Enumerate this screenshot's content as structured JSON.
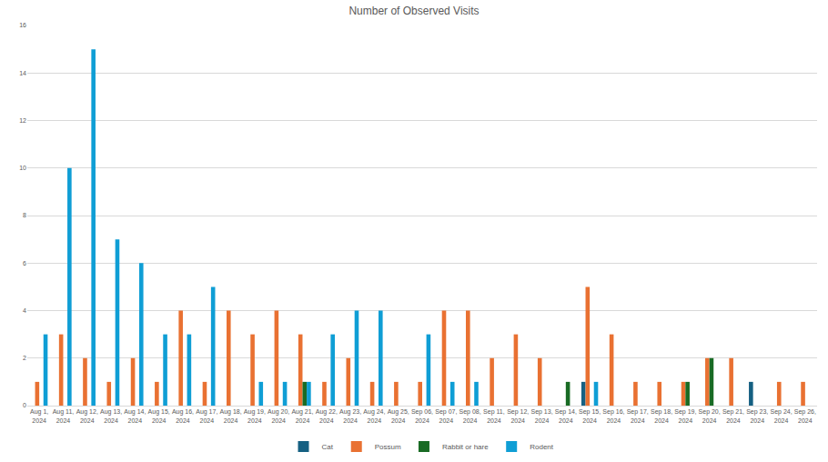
{
  "chart_data": {
    "type": "bar",
    "title": "Number of Observed Visits",
    "categories": [
      "Aug 1, 2024",
      "Aug 11, 2024",
      "Aug 12, 2024",
      "Aug 13, 2024",
      "Aug 14, 2024",
      "Aug 15, 2024",
      "Aug 16, 2024",
      "Aug 17, 2024",
      "Aug 18, 2024",
      "Aug 19, 2024",
      "Aug 20, 2024",
      "Aug 21, 2024",
      "Aug 22, 2024",
      "Aug 23, 2024",
      "Aug 24, 2024",
      "Aug 25, 2024",
      "Sep 06, 2024",
      "Sep 07, 2024",
      "Sep 08, 2024",
      "Sep 11, 2024",
      "Sep 12, 2024",
      "Sep 13, 2024",
      "Sep 14, 2024",
      "Sep 15, 2024",
      "Sep 16, 2024",
      "Sep 17, 2024",
      "Sep 18, 2024",
      "Sep 19, 2024",
      "Sep 20, 2024",
      "Sep 21, 2024",
      "Sep 23, 2024",
      "Sep 24, 2024",
      "Sep 26, 2024"
    ],
    "series": [
      {
        "name": "Cat",
        "color": "#156082",
        "values": [
          null,
          null,
          null,
          null,
          null,
          null,
          null,
          null,
          null,
          null,
          null,
          null,
          null,
          null,
          null,
          null,
          null,
          null,
          null,
          null,
          null,
          null,
          null,
          1,
          null,
          null,
          null,
          null,
          null,
          null,
          1,
          null,
          null
        ]
      },
      {
        "name": "Possum",
        "color": "#e97132",
        "values": [
          1,
          3,
          2,
          1,
          2,
          1,
          4,
          1,
          4,
          3,
          4,
          3,
          1,
          2,
          1,
          1,
          1,
          4,
          4,
          2,
          3,
          2,
          null,
          5,
          3,
          1,
          1,
          1,
          2,
          2,
          null,
          1,
          1
        ]
      },
      {
        "name": "Rabbit or hare",
        "color": "#196b24",
        "values": [
          null,
          null,
          null,
          null,
          null,
          null,
          null,
          null,
          null,
          null,
          null,
          1,
          null,
          null,
          null,
          null,
          null,
          null,
          null,
          null,
          null,
          null,
          1,
          null,
          null,
          null,
          null,
          1,
          2,
          null,
          null,
          null,
          null
        ]
      },
      {
        "name": "Rodent",
        "color": "#0f9ed5",
        "values": [
          3,
          10,
          15,
          7,
          6,
          3,
          3,
          5,
          null,
          1,
          1,
          1,
          3,
          4,
          4,
          null,
          3,
          1,
          1,
          null,
          null,
          null,
          null,
          1,
          null,
          null,
          null,
          null,
          null,
          null,
          null,
          null,
          null
        ]
      }
    ],
    "ylim": [
      0,
      16
    ],
    "yticks": [
      0,
      2,
      4,
      6,
      8,
      10,
      12,
      14,
      16
    ],
    "grid": true,
    "legend": "bottom"
  }
}
